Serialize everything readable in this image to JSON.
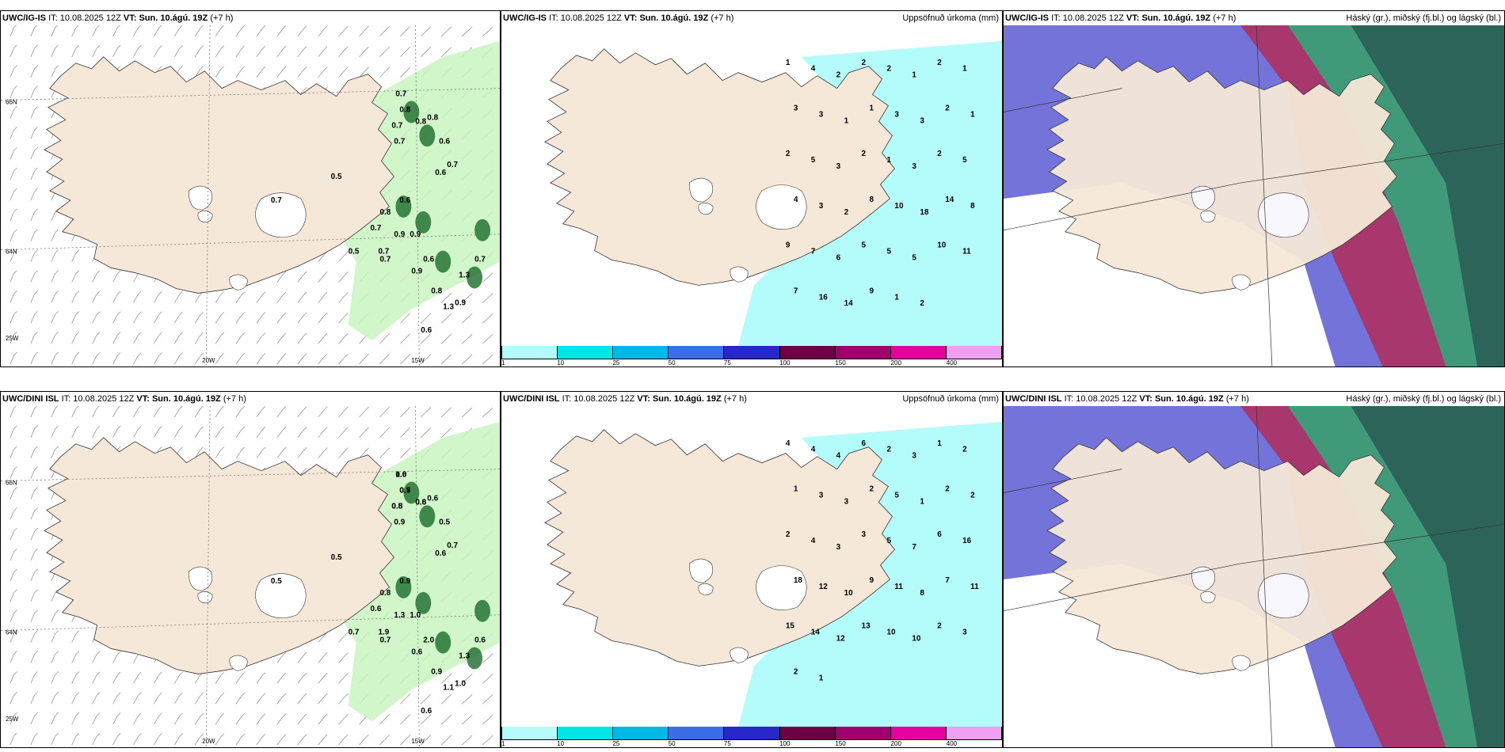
{
  "panels": [
    {
      "model": "UWC/IG-IS",
      "it_label": "IT:",
      "it_value": "10.08.2025 12Z",
      "vt_label": "VT:",
      "vt_value": "Sun. 10.ágú. 19Z",
      "lead": "(+7 h)",
      "right_title": "",
      "values": [
        "0.7",
        "0.8",
        "0.7",
        "0.8",
        "0.7",
        "0.8",
        "0.6",
        "0.7",
        "0.6",
        "0.5",
        "0.7",
        "0.7",
        "0.5",
        "0.7",
        "0.9",
        "0.9",
        "0.8",
        "0.6",
        "0.7",
        "0.9",
        "0.6",
        "0.8",
        "1.3",
        "0.9",
        "0.7",
        "1.3",
        "0.6"
      ]
    },
    {
      "model": "UWC/IG-IS",
      "it_label": "IT:",
      "it_value": "10.08.2025 12Z",
      "vt_label": "VT:",
      "vt_value": "Sun. 10.ágú. 19Z",
      "lead": "(+7 h)",
      "right_title": "Uppsöfnuð úrkoma (mm)",
      "values": [
        "1",
        "4",
        "2",
        "2",
        "2",
        "1",
        "2",
        "1",
        "3",
        "3",
        "1",
        "1",
        "3",
        "3",
        "2",
        "1",
        "2",
        "5",
        "3",
        "2",
        "1",
        "3",
        "2",
        "5",
        "4",
        "3",
        "2",
        "8",
        "10",
        "18",
        "14",
        "8",
        "9",
        "7",
        "6",
        "5",
        "5",
        "5",
        "10",
        "11",
        "7",
        "16",
        "14",
        "9",
        "1",
        "2"
      ]
    },
    {
      "model": "UWC/IG-IS",
      "it_label": "IT:",
      "it_value": "10.08.2025 12Z",
      "vt_label": "VT:",
      "vt_value": "Sun. 10.ágú. 19Z",
      "lead": "(+7 h)",
      "right_title": "Háský (gr.), miðský (fj.bl.) og lágský (bl.)",
      "values": []
    },
    {
      "model": "UWC/DINI ISL",
      "it_label": "IT:",
      "it_value": "10.08.2025 12Z",
      "vt_label": "VT:",
      "vt_value": "Sun. 10.ágú. 19Z",
      "lead": "(+7 h)",
      "right_title": "",
      "values": [
        "0.6",
        "0.5",
        "0.5",
        "0.8",
        "0.9",
        "0.6",
        "0.5",
        "0.7",
        "0.6",
        "0.5",
        "0.5",
        "0.6",
        "0.7",
        "1.9",
        "1.3",
        "1.0",
        "0.8",
        "0.9",
        "0.7",
        "0.6",
        "2.0",
        "0.9",
        "1.1",
        "1.0",
        "0.6",
        "1.3",
        "0.6",
        "1.0",
        "0.7",
        "0.8",
        "0.6"
      ]
    },
    {
      "model": "UWC/DINI ISL",
      "it_label": "IT:",
      "it_value": "10.08.2025 12Z",
      "vt_label": "VT:",
      "vt_value": "Sun. 10.ágú. 19Z",
      "lead": "(+7 h)",
      "right_title": "Uppsöfnuð úrkoma (mm)",
      "values": [
        "4",
        "4",
        "4",
        "6",
        "2",
        "3",
        "1",
        "2",
        "1",
        "3",
        "3",
        "2",
        "5",
        "1",
        "2",
        "2",
        "2",
        "4",
        "3",
        "3",
        "5",
        "7",
        "6",
        "16",
        "18",
        "12",
        "10",
        "9",
        "11",
        "8",
        "7",
        "11",
        "15",
        "14",
        "12",
        "13",
        "10",
        "10",
        "2",
        "3",
        "2",
        "1"
      ]
    },
    {
      "model": "UWC/DINI ISL",
      "it_label": "IT:",
      "it_value": "10.08.2025 12Z",
      "vt_label": "VT:",
      "vt_value": "Sun. 10.ágú. 19Z",
      "lead": "(+7 h)",
      "right_title": "Háský (gr.), miðský (fj.bl.) og lágský (bl.)",
      "values": []
    }
  ],
  "axes": {
    "lon_20w": "20W",
    "lon_15w": "15W",
    "lat_66n": "66N",
    "lat_64n": "64N",
    "lat_25w": "25W"
  },
  "colorbar": {
    "ticks": [
      "1",
      "10",
      "25",
      "50",
      "75",
      "100",
      "150",
      "200",
      "400"
    ],
    "colors": [
      "#b4fbfb",
      "#00e6e6",
      "#00b8e6",
      "#3a6ee6",
      "#2828c8",
      "#6e0046",
      "#a0006e",
      "#e600a0",
      "#f0a0f0"
    ]
  },
  "colors": {
    "land": "#f6e8d8",
    "lake": "#ffffff",
    "precip_light": "#c8f5c0",
    "precip_dark": "#1a6b2a",
    "accum": "#b4fbfb",
    "cloud_low": "#5a5ad2",
    "cloud_mid": "#b42850",
    "cloud_high": "#2eaa7a",
    "cloud_dark": "#2a5a55"
  }
}
